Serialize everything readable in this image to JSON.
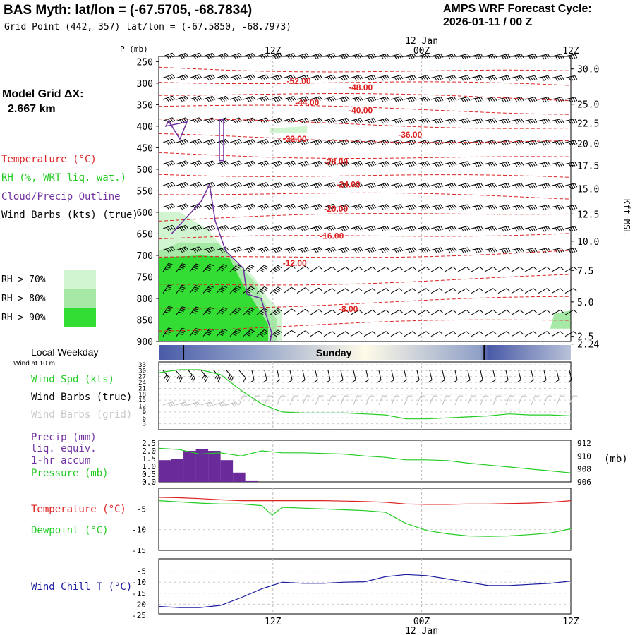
{
  "header": {
    "title": "BAS Myth:  lat/lon = (-67.5705, -68.7834)",
    "grid_point": "Grid Point (442, 357) lat/lon = (-67.5850, -68.7973)",
    "cycle_line1": "AMPS WRF Forecast Cycle:",
    "cycle_line2": "2026-01-11 / 00  Z"
  },
  "left_panel": {
    "model_grid_label": "Model Grid ΔX:",
    "model_grid_value": "2.667 km",
    "legend_items": [
      {
        "text": "Temperature (°C)",
        "color": "#dd2222"
      },
      {
        "text": "RH (%, WRT liq. wat.)",
        "color": "#22cc22"
      },
      {
        "text": "Cloud/Precip Outline",
        "color": "#7030a0"
      },
      {
        "text": "Wind Barbs (kts) (true)",
        "color": "#000000"
      }
    ],
    "rh_legend": [
      {
        "label": "RH > 70%",
        "color": "#d0f5d0"
      },
      {
        "label": "RH > 80%",
        "color": "#a6e8a6"
      },
      {
        "label": "RH > 90%",
        "color": "#33dd33"
      }
    ]
  },
  "time_axis": {
    "date_label": "12 Jan",
    "ticks": [
      "12Z",
      "00Z",
      "12Z"
    ]
  },
  "weekday_bar": {
    "label": "Local Weekday",
    "day": "Sunday"
  },
  "chart_data": [
    {
      "type": "contour",
      "name": "time-height cross section",
      "ylabel": "P (mb)",
      "y_ticks": [
        250,
        300,
        350,
        400,
        450,
        500,
        550,
        600,
        650,
        700,
        750,
        800,
        850,
        900
      ],
      "ylim": [
        900,
        238
      ],
      "right_label": "Kft MSL",
      "right_ticks": [
        {
          "value": "30.0",
          "p": 267
        },
        {
          "value": "25.0",
          "p": 349
        },
        {
          "value": "22.5",
          "p": 393
        },
        {
          "value": "20.0",
          "p": 440
        },
        {
          "value": "17.5",
          "p": 491
        },
        {
          "value": "15.0",
          "p": 545
        },
        {
          "value": "12.5",
          "p": 604
        },
        {
          "value": "10.0",
          "p": 667
        },
        {
          "value": "7.5",
          "p": 735
        },
        {
          "value": "5.0",
          "p": 808
        },
        {
          "value": "2.5",
          "p": 888
        },
        {
          "value": "2.24",
          "p": 906
        }
      ],
      "temperature_contours": [
        {
          "label": "-52.00",
          "t": 0.34,
          "p": 295
        },
        {
          "label": "-48.00",
          "t": 0.49,
          "p": 310
        },
        {
          "label": "-44.00",
          "t": 0.36,
          "p": 345
        },
        {
          "label": "-40.00",
          "t": 0.49,
          "p": 363
        },
        {
          "label": "-36.00",
          "t": 0.61,
          "p": 420
        },
        {
          "label": "-32.00",
          "t": 0.33,
          "p": 430
        },
        {
          "label": "-28.00",
          "t": 0.43,
          "p": 483
        },
        {
          "label": "-24.00",
          "t": 0.46,
          "p": 535
        },
        {
          "label": "-20.00",
          "t": 0.43,
          "p": 592
        },
        {
          "label": "-16.00",
          "t": 0.42,
          "p": 655
        },
        {
          "label": "-12.00",
          "t": 0.33,
          "p": 718
        },
        {
          "label": "-8.00",
          "t": 0.46,
          "p": 825
        }
      ]
    },
    {
      "type": "line",
      "name": "wind speed",
      "yticks": [
        3,
        6,
        9,
        12,
        15,
        18,
        21,
        24,
        27,
        30,
        33
      ],
      "ylim": [
        0,
        33
      ],
      "series": [
        {
          "name": "Wind Spd (kts)",
          "color": "#22cc22",
          "x": [
            0,
            0.05,
            0.1,
            0.15,
            0.2,
            0.25,
            0.3,
            0.35,
            0.4,
            0.45,
            0.5,
            0.55,
            0.6,
            0.65,
            0.7,
            0.75,
            0.8,
            0.85,
            0.9,
            0.95,
            1.0
          ],
          "values": [
            29,
            30.5,
            30.5,
            28,
            20,
            13,
            9,
            8.5,
            8.5,
            8.5,
            8,
            7.5,
            5.5,
            5.5,
            6,
            6.5,
            7,
            8,
            7.5,
            7.5,
            7
          ]
        }
      ],
      "labels": [
        "Wind Spd (kts)",
        "Wind Barbs (true)",
        "Wind Barbs (grid)"
      ],
      "wind_label": "Wind at 10 m"
    },
    {
      "type": "bar+line",
      "name": "precip and pressure",
      "left_ticks": [
        "0.0",
        "0.5",
        "1.0",
        "1.5",
        "2.0",
        "2.5"
      ],
      "right_ticks": [
        "906",
        "908",
        "910",
        "912"
      ],
      "precip_x": [
        0,
        0.03,
        0.06,
        0.09,
        0.12,
        0.15,
        0.18,
        0.21
      ],
      "precip_values": [
        1.4,
        1.5,
        2.0,
        2.1,
        2.0,
        1.4,
        0.6,
        0.05
      ],
      "pressure_x": [
        0,
        0.05,
        0.1,
        0.15,
        0.2,
        0.25,
        0.3,
        0.35,
        0.4,
        0.45,
        0.5,
        0.55,
        0.6,
        0.65,
        0.7,
        0.75,
        0.8,
        0.85,
        0.9,
        0.95,
        1.0
      ],
      "pressure_values": [
        911.2,
        911.0,
        910.3,
        910.5,
        910.0,
        910.8,
        910.5,
        910.5,
        910.4,
        910.3,
        910.0,
        909.8,
        909.4,
        909.4,
        909.3,
        908.9,
        908.6,
        908.3,
        908.0,
        907.7,
        907.4
      ],
      "labels": [
        "Precip (mm)",
        "liq. equiv.",
        "1-hr accum",
        "Pressure (mb)"
      ],
      "right_unit": "(mb)"
    },
    {
      "type": "line",
      "name": "temperature and dewpoint",
      "yticks": [
        "-5",
        "-10",
        "-15"
      ],
      "ylim": [
        -15,
        0
      ],
      "series": [
        {
          "name": "Temperature (°C)",
          "color": "#dd2222",
          "x": [
            0,
            0.05,
            0.1,
            0.15,
            0.2,
            0.25,
            0.3,
            0.35,
            0.4,
            0.45,
            0.5,
            0.55,
            0.6,
            0.65,
            0.7,
            0.75,
            0.8,
            0.85,
            0.9,
            0.95,
            1.0
          ],
          "values": [
            -2.2,
            -2.3,
            -2.5,
            -2.8,
            -3.0,
            -3.0,
            -3.0,
            -3.0,
            -3.0,
            -3.1,
            -3.2,
            -3.4,
            -3.8,
            -3.9,
            -3.9,
            -3.8,
            -3.8,
            -3.7,
            -3.6,
            -3.4,
            -3.0
          ]
        },
        {
          "name": "Dewpoint (°C)",
          "color": "#22cc22",
          "x": [
            0,
            0.05,
            0.1,
            0.15,
            0.2,
            0.25,
            0.275,
            0.3,
            0.35,
            0.4,
            0.45,
            0.5,
            0.55,
            0.6,
            0.65,
            0.7,
            0.75,
            0.8,
            0.85,
            0.9,
            0.95,
            1.0
          ],
          "values": [
            -3.0,
            -3.3,
            -3.6,
            -3.8,
            -3.8,
            -4.2,
            -6.5,
            -4.6,
            -4.8,
            -5.0,
            -5.2,
            -5.4,
            -5.8,
            -8.5,
            -10.2,
            -11.0,
            -11.5,
            -11.6,
            -11.5,
            -11.2,
            -10.8,
            -9.8
          ]
        }
      ]
    },
    {
      "type": "line",
      "name": "wind chill",
      "yticks": [
        "-5",
        "-10",
        "-15",
        "-20",
        "-25"
      ],
      "ylim": [
        -25,
        0
      ],
      "series": [
        {
          "name": "Wind Chill T (°C)",
          "color": "#1a1aa0",
          "x": [
            0,
            0.05,
            0.1,
            0.15,
            0.2,
            0.25,
            0.3,
            0.35,
            0.4,
            0.45,
            0.5,
            0.55,
            0.6,
            0.65,
            0.7,
            0.75,
            0.8,
            0.85,
            0.9,
            0.95,
            1.0
          ],
          "values": [
            -21.0,
            -21.5,
            -21.5,
            -20.5,
            -17.0,
            -13.0,
            -10.0,
            -10.5,
            -10.5,
            -10.0,
            -9.8,
            -7.5,
            -6.5,
            -7.0,
            -8.5,
            -10.0,
            -11.5,
            -11.5,
            -11.0,
            -10.5,
            -9.5
          ]
        }
      ]
    }
  ]
}
